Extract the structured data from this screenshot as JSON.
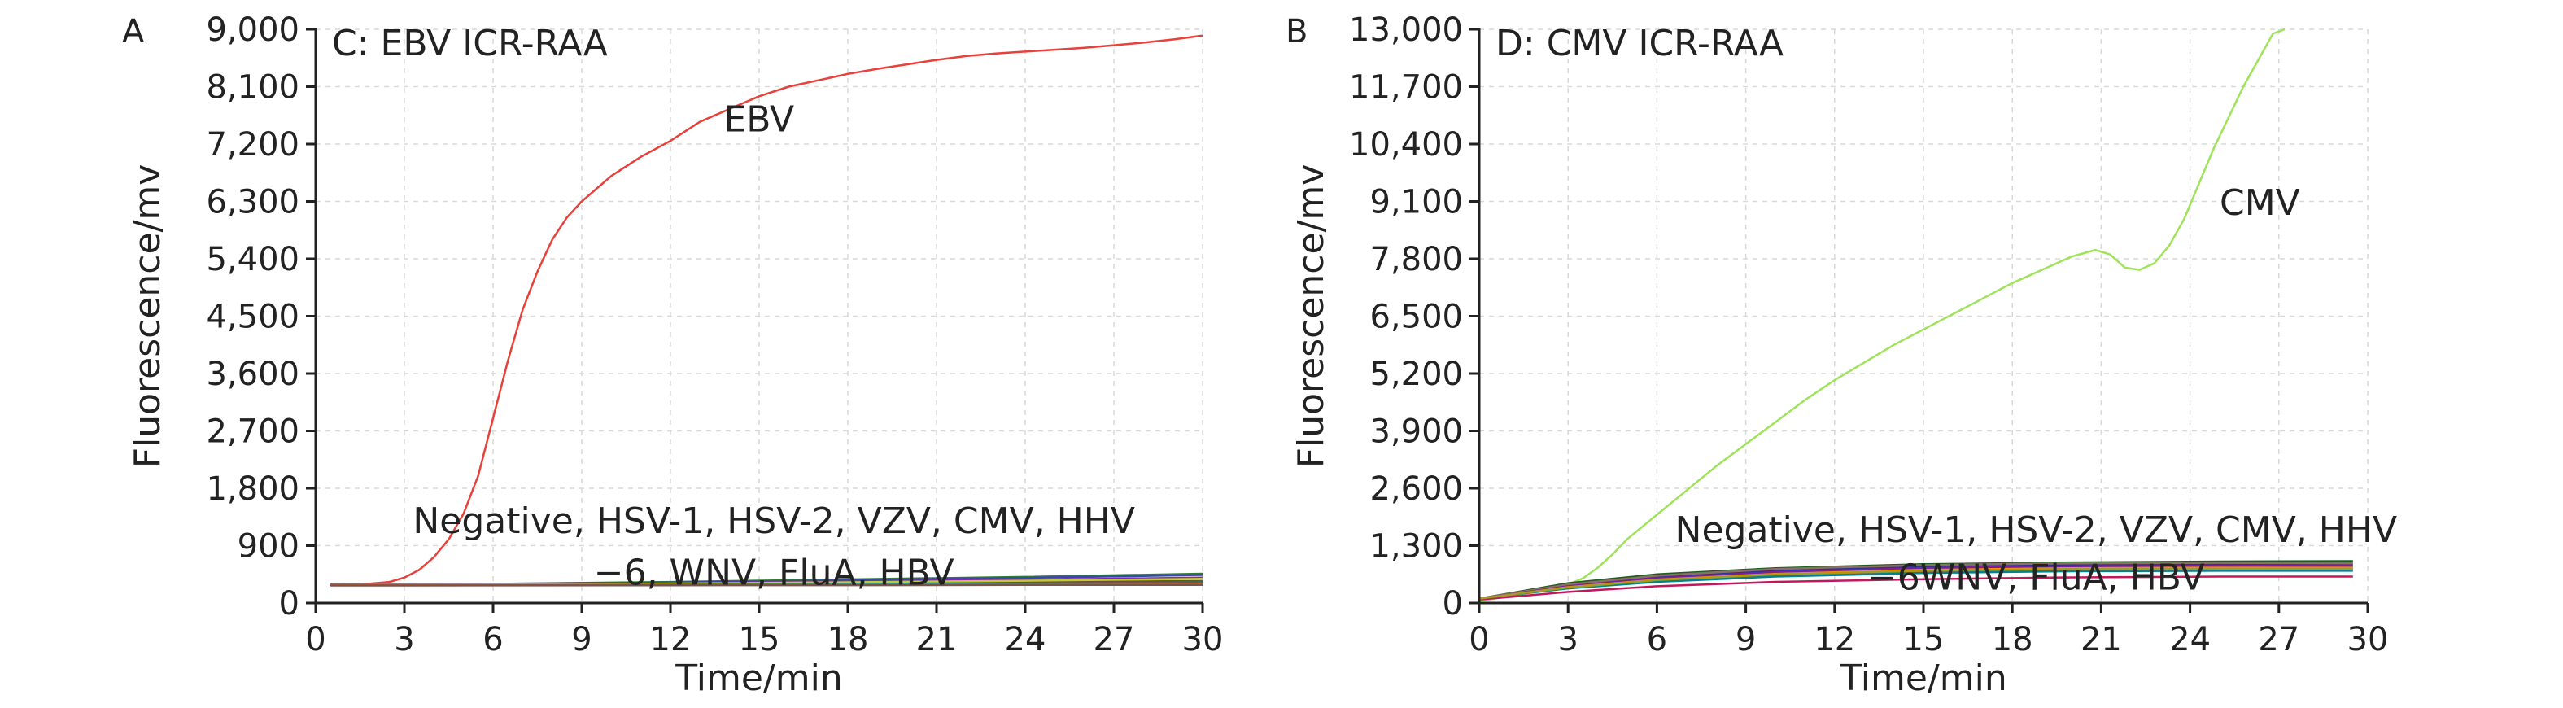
{
  "chart_data": [
    {
      "type": "line",
      "panel_letter": "A",
      "title": "C: EBV ICR-RAA",
      "xlabel": "Time/min",
      "ylabel": "Fluorescence/mv",
      "xlim": [
        0,
        30
      ],
      "ylim": [
        0,
        9000
      ],
      "xticks": [
        0,
        3,
        6,
        9,
        12,
        15,
        18,
        21,
        24,
        27,
        30
      ],
      "yticks": [
        0,
        900,
        1800,
        2700,
        3600,
        4500,
        5400,
        6300,
        7200,
        8100,
        9000
      ],
      "xtick_labels": [
        "0",
        "3",
        "6",
        "9",
        "12",
        "15",
        "18",
        "21",
        "24",
        "27",
        "30"
      ],
      "ytick_labels": [
        "0",
        "900",
        "1,800",
        "2,700",
        "3,600",
        "4,500",
        "5,400",
        "6,300",
        "7,200",
        "8,100",
        "9,000"
      ],
      "grid": true,
      "annotations": [
        {
          "text": "EBV",
          "x": 13.8,
          "y": 7400
        },
        {
          "text": "Negative, HSV-1, HSV-2, VZV, CMV, HHV",
          "x": 15.5,
          "y": 1100
        },
        {
          "text": "−6, WNV, FluA, HBV",
          "x": 15.5,
          "y": 290
        }
      ],
      "series": [
        {
          "name": "EBV",
          "color": "#e8403a",
          "x": [
            0.5,
            1.5,
            2.5,
            3.0,
            3.5,
            4.0,
            4.5,
            5.0,
            5.5,
            6.0,
            6.5,
            7.0,
            7.5,
            8.0,
            8.5,
            9.0,
            9.5,
            10.0,
            10.5,
            11.0,
            12.0,
            13.0,
            14.0,
            15.0,
            16.0,
            17.0,
            18.0,
            19.0,
            20.0,
            21.0,
            22.0,
            23.0,
            24.0,
            25.0,
            26.0,
            27.0,
            28.0,
            29.0,
            30.0
          ],
          "y": [
            290,
            290,
            330,
            400,
            520,
            720,
            1000,
            1400,
            2000,
            2900,
            3800,
            4600,
            5200,
            5700,
            6050,
            6300,
            6500,
            6700,
            6850,
            7000,
            7250,
            7550,
            7750,
            7950,
            8100,
            8200,
            8300,
            8380,
            8450,
            8520,
            8580,
            8620,
            8650,
            8680,
            8710,
            8750,
            8790,
            8840,
            8900
          ]
        },
        {
          "color": "#2e7d32",
          "x": [
            0.5,
            6.0,
            12.0,
            18.0,
            24.0,
            30.0
          ],
          "y": [
            290,
            300,
            330,
            370,
            410,
            460
          ]
        },
        {
          "color": "#3949ab",
          "x": [
            0.5,
            6.0,
            12.0,
            18.0,
            24.0,
            30.0
          ],
          "y": [
            290,
            295,
            320,
            355,
            395,
            440
          ]
        },
        {
          "color": "#8e24aa",
          "x": [
            0.5,
            6.0,
            12.0,
            18.0,
            24.0,
            30.0
          ],
          "y": [
            290,
            293,
            310,
            335,
            365,
            400
          ]
        },
        {
          "color": "#6d4c41",
          "x": [
            0.5,
            6.0,
            12.0,
            18.0,
            24.0,
            30.0
          ],
          "y": [
            285,
            288,
            300,
            315,
            330,
            345
          ]
        },
        {
          "color": "#c0ca33",
          "x": [
            0.5,
            6.0,
            12.0,
            18.0,
            24.0,
            30.0
          ],
          "y": [
            285,
            290,
            305,
            325,
            350,
            380
          ]
        },
        {
          "color": "#00897b",
          "x": [
            0.5,
            6.0,
            12.0,
            18.0,
            24.0,
            30.0
          ],
          "y": [
            280,
            282,
            290,
            300,
            310,
            320
          ]
        },
        {
          "color": "#f4511e",
          "x": [
            0.5,
            6.0,
            12.0,
            18.0,
            24.0,
            30.0
          ],
          "y": [
            280,
            280,
            285,
            290,
            295,
            300
          ]
        },
        {
          "color": "#795548",
          "x": [
            0.5,
            6.0,
            12.0,
            18.0,
            24.0,
            30.0
          ],
          "y": [
            275,
            276,
            278,
            280,
            283,
            285
          ]
        }
      ]
    },
    {
      "type": "line",
      "panel_letter": "B",
      "title": "D: CMV ICR-RAA",
      "xlabel": "Time/min",
      "ylabel": "Fluorescence/mv",
      "xlim": [
        0,
        30
      ],
      "ylim": [
        0,
        13000
      ],
      "xticks": [
        0,
        3,
        6,
        9,
        12,
        15,
        18,
        21,
        24,
        27,
        30
      ],
      "yticks": [
        0,
        1300,
        2600,
        3900,
        5200,
        6500,
        7800,
        9100,
        10400,
        11700,
        13000
      ],
      "xtick_labels": [
        "0",
        "3",
        "6",
        "9",
        "12",
        "15",
        "18",
        "21",
        "24",
        "27",
        "30"
      ],
      "ytick_labels": [
        "0",
        "1,300",
        "2,600",
        "3,900",
        "5,200",
        "6,500",
        "7,800",
        "9,100",
        "10,400",
        "11,700",
        "13,000"
      ],
      "grid": true,
      "annotations": [
        {
          "text": "CMV",
          "x": 25.0,
          "y": 8800
        },
        {
          "text": "Negative, HSV-1, HSV-2, VZV, CMV, HHV",
          "x": 18.8,
          "y": 1380
        },
        {
          "text": "−6WNV, FluA, HBV",
          "x": 18.8,
          "y": 300
        }
      ],
      "series": [
        {
          "name": "CMV",
          "color": "#9ee35a",
          "x": [
            -0.5,
            1.0,
            2.0,
            3.0,
            3.5,
            4.0,
            4.5,
            5.0,
            6.0,
            7.0,
            8.0,
            9.0,
            10.0,
            11.0,
            12.0,
            13.0,
            14.0,
            15.0,
            16.0,
            17.0,
            18.0,
            19.0,
            20.0,
            20.8,
            21.3,
            21.8,
            22.3,
            22.8,
            23.3,
            23.8,
            24.3,
            24.8,
            25.3,
            25.8,
            26.3,
            26.8,
            27.2
          ],
          "y": [
            50,
            150,
            280,
            420,
            560,
            800,
            1100,
            1450,
            2000,
            2550,
            3100,
            3600,
            4100,
            4600,
            5050,
            5450,
            5850,
            6200,
            6550,
            6900,
            7250,
            7550,
            7850,
            8000,
            7900,
            7600,
            7550,
            7700,
            8100,
            8700,
            9500,
            10300,
            11000,
            11700,
            12300,
            12900,
            13000
          ]
        },
        {
          "color": "#1b5e20",
          "x": [
            -0.5,
            3.0,
            6.0,
            10.0,
            15.0,
            20.0,
            25.0,
            29.5
          ],
          "y": [
            100,
            450,
            650,
            790,
            880,
            920,
            940,
            950
          ]
        },
        {
          "color": "#283593",
          "x": [
            -0.5,
            3.0,
            6.0,
            10.0,
            15.0,
            20.0,
            25.0,
            29.5
          ],
          "y": [
            100,
            400,
            600,
            740,
            830,
            870,
            880,
            880
          ]
        },
        {
          "color": "#8d6e63",
          "x": [
            -0.5,
            3.0,
            6.0,
            10.0,
            15.0,
            20.0,
            25.0,
            29.5
          ],
          "y": [
            100,
            420,
            620,
            770,
            860,
            900,
            910,
            900
          ]
        },
        {
          "color": "#7b1fa2",
          "x": [
            -0.5,
            3.0,
            6.0,
            10.0,
            15.0,
            20.0,
            25.0,
            29.5
          ],
          "y": [
            100,
            380,
            560,
            700,
            790,
            830,
            840,
            840
          ]
        },
        {
          "color": "#ff8f00",
          "x": [
            -0.5,
            3.0,
            6.0,
            10.0,
            15.0,
            20.0,
            25.0,
            29.5
          ],
          "y": [
            100,
            360,
            530,
            660,
            750,
            790,
            800,
            800
          ]
        },
        {
          "color": "#e53935",
          "x": [
            -0.5,
            3.0,
            6.0,
            10.0,
            15.0,
            20.0,
            25.0,
            29.5
          ],
          "y": [
            100,
            340,
            500,
            620,
            700,
            740,
            760,
            760
          ]
        },
        {
          "color": "#00838f",
          "x": [
            -0.5,
            3.0,
            6.0,
            10.0,
            15.0,
            20.0,
            25.0,
            29.5
          ],
          "y": [
            100,
            330,
            480,
            600,
            680,
            720,
            730,
            730
          ]
        },
        {
          "color": "#c2185b",
          "x": [
            -0.5,
            3.0,
            6.0,
            10.0,
            15.0,
            20.0,
            25.0,
            29.5
          ],
          "y": [
            80,
            250,
            380,
            480,
            540,
            580,
            600,
            600
          ]
        },
        {
          "color": "#9e9d24",
          "x": [
            -0.5,
            3.0,
            6.0,
            10.0,
            15.0,
            20.0,
            25.0,
            29.5
          ],
          "y": [
            100,
            350,
            520,
            650,
            730,
            770,
            780,
            780
          ]
        }
      ]
    }
  ]
}
